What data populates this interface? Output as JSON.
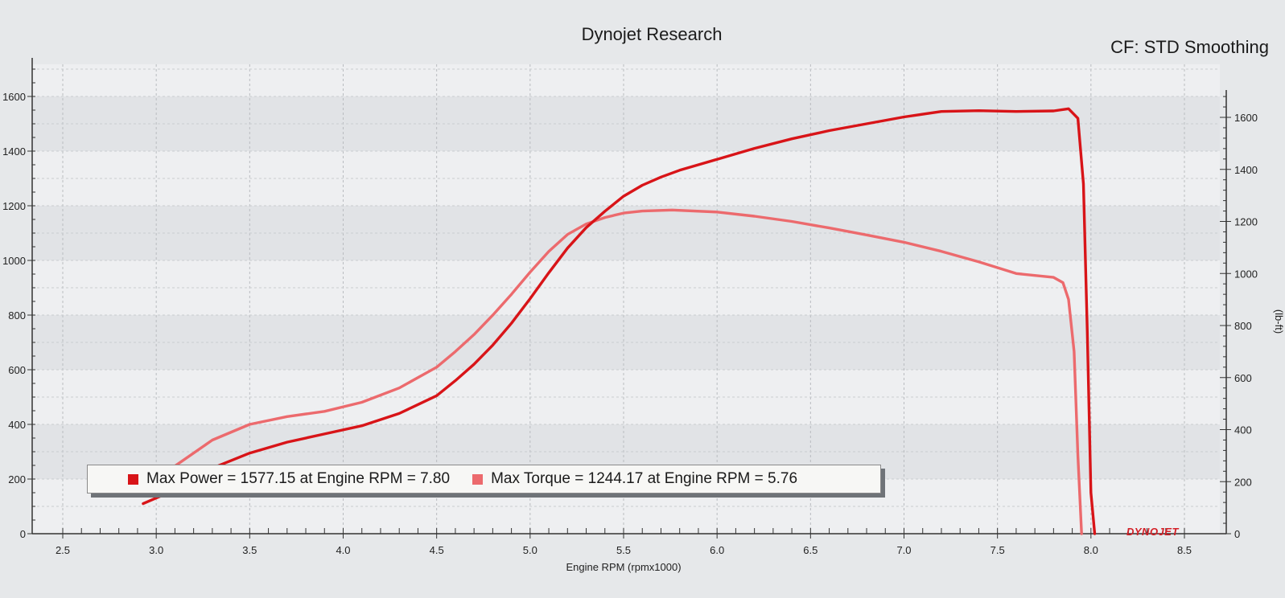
{
  "header": {
    "title": "Dynojet Research",
    "correction": "CF: STD Smoothing"
  },
  "legend": {
    "power_text": "Max Power = 1577.15 at Engine RPM = 7.80",
    "torque_text": "Max Torque = 1244.17 at Engine RPM = 5.76"
  },
  "brand": "DYNOJET",
  "colors": {
    "power": "#d81418",
    "torque": "#ec6a6d",
    "plot_bg": "#eeeff1",
    "band_dark": "#e1e3e6"
  },
  "chart_data": {
    "type": "line",
    "xlabel": "Engine RPM (rpmx1000)",
    "x_ticks": [
      "2.5",
      "3.0",
      "3.5",
      "4.0",
      "4.5",
      "5.0",
      "5.5",
      "6.0",
      "6.5",
      "7.0",
      "7.5",
      "8.0",
      "8.5"
    ],
    "xlim": [
      2.5,
      8.5
    ],
    "left_axis": {
      "ylim": [
        0,
        1600
      ],
      "ticks": [
        "0",
        "200",
        "400",
        "600",
        "800",
        "1000",
        "1200",
        "1400",
        "1600"
      ]
    },
    "right_axis": {
      "ylabel": "(lb-ft)",
      "ylim": [
        0,
        1600
      ],
      "ticks": [
        "0",
        "200",
        "400",
        "600",
        "800",
        "1000",
        "1200",
        "1400",
        "1600"
      ]
    },
    "series": [
      {
        "name": "Max Power",
        "axis": "left",
        "x": [
          2.93,
          3.1,
          3.3,
          3.5,
          3.7,
          3.9,
          4.1,
          4.3,
          4.5,
          4.6,
          4.7,
          4.8,
          4.9,
          5.0,
          5.1,
          5.2,
          5.3,
          5.4,
          5.5,
          5.6,
          5.7,
          5.8,
          5.9,
          6.0,
          6.2,
          6.4,
          6.6,
          6.8,
          7.0,
          7.2,
          7.4,
          7.6,
          7.8,
          7.88,
          7.93,
          7.96,
          7.98,
          8.0,
          8.02
        ],
        "y": [
          110,
          160,
          240,
          295,
          335,
          365,
          395,
          440,
          505,
          560,
          620,
          690,
          770,
          860,
          955,
          1045,
          1120,
          1180,
          1235,
          1275,
          1305,
          1330,
          1350,
          1370,
          1410,
          1445,
          1475,
          1500,
          1525,
          1545,
          1548,
          1545,
          1547,
          1555,
          1520,
          1280,
          750,
          150,
          0
        ]
      },
      {
        "name": "Max Torque",
        "axis": "right",
        "x": [
          2.93,
          3.1,
          3.3,
          3.5,
          3.7,
          3.9,
          4.1,
          4.3,
          4.5,
          4.6,
          4.7,
          4.8,
          4.9,
          5.0,
          5.1,
          5.2,
          5.3,
          5.4,
          5.5,
          5.6,
          5.76,
          6.0,
          6.2,
          6.4,
          6.6,
          6.8,
          7.0,
          7.2,
          7.4,
          7.6,
          7.8,
          7.85,
          7.88,
          7.91,
          7.93,
          7.95
        ],
        "y": [
          170,
          260,
          360,
          420,
          450,
          470,
          505,
          560,
          640,
          700,
          765,
          840,
          920,
          1005,
          1085,
          1150,
          1190,
          1215,
          1232,
          1240,
          1244,
          1236,
          1220,
          1200,
          1175,
          1148,
          1120,
          1085,
          1045,
          1000,
          985,
          965,
          900,
          700,
          300,
          0
        ]
      }
    ]
  }
}
